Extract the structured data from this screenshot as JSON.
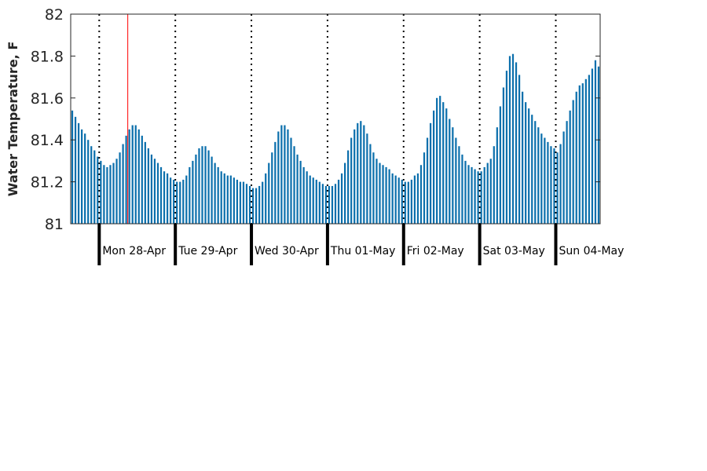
{
  "chart_data": {
    "type": "bar",
    "title": "",
    "xlabel": "",
    "ylabel": "Water Temperature, F",
    "ylim": [
      81,
      82
    ],
    "yticks": [
      "81",
      "81.2",
      "81.4",
      "81.6",
      "81.8",
      "82"
    ],
    "x_day_labels": [
      "Mon 28-Apr",
      "Tue 29-Apr",
      "Wed 30-Apr",
      "Thu 01-May",
      "Fri 02-May",
      "Sat 03-May",
      "Sun 04-May"
    ],
    "bar_color": "#0b6fac",
    "current_time_marker_color": "#ff0000",
    "current_time_marker_hours_after_start": 18,
    "hours_before_first_midnight": 9,
    "grid": false,
    "day_separators": "dotted",
    "series": [
      {
        "values": [
          81.54,
          81.51,
          81.48,
          81.45,
          81.43,
          81.4,
          81.37,
          81.35,
          81.32,
          81.3,
          81.28,
          81.27,
          81.28,
          81.29,
          81.31,
          81.34,
          81.38,
          81.42,
          81.45,
          81.47,
          81.47,
          81.45,
          81.42,
          81.39,
          81.36,
          81.33,
          81.31,
          81.29,
          81.27,
          81.25,
          81.24,
          81.22,
          81.21,
          81.2,
          81.2,
          81.21,
          81.23,
          81.27,
          81.3,
          81.33,
          81.36,
          81.37,
          81.37,
          81.35,
          81.32,
          81.29,
          81.27,
          81.25,
          81.24,
          81.23,
          81.23,
          81.22,
          81.21,
          81.2,
          81.2,
          81.19,
          81.18,
          81.17,
          81.17,
          81.18,
          81.2,
          81.24,
          81.29,
          81.34,
          81.39,
          81.44,
          81.47,
          81.47,
          81.45,
          81.41,
          81.37,
          81.33,
          81.3,
          81.27,
          81.25,
          81.23,
          81.22,
          81.21,
          81.2,
          81.19,
          81.18,
          81.18,
          81.18,
          81.19,
          81.21,
          81.24,
          81.29,
          81.35,
          81.41,
          81.45,
          81.48,
          81.49,
          81.47,
          81.43,
          81.38,
          81.34,
          81.31,
          81.29,
          81.28,
          81.27,
          81.26,
          81.24,
          81.23,
          81.22,
          81.21,
          81.2,
          81.2,
          81.21,
          81.23,
          81.24,
          81.28,
          81.34,
          81.41,
          81.48,
          81.54,
          81.6,
          81.61,
          81.58,
          81.55,
          81.5,
          81.46,
          81.41,
          81.37,
          81.33,
          81.3,
          81.28,
          81.27,
          81.26,
          81.25,
          81.25,
          81.27,
          81.29,
          81.31,
          81.37,
          81.46,
          81.56,
          81.65,
          81.73,
          81.8,
          81.81,
          81.77,
          81.71,
          81.63,
          81.58,
          81.55,
          81.52,
          81.49,
          81.46,
          81.43,
          81.41,
          81.39,
          81.37,
          81.36,
          81.34,
          81.38,
          81.44,
          81.49,
          81.54,
          81.59,
          81.63,
          81.66,
          81.67,
          81.69,
          81.71,
          81.74,
          81.78,
          81.75
        ]
      }
    ]
  }
}
